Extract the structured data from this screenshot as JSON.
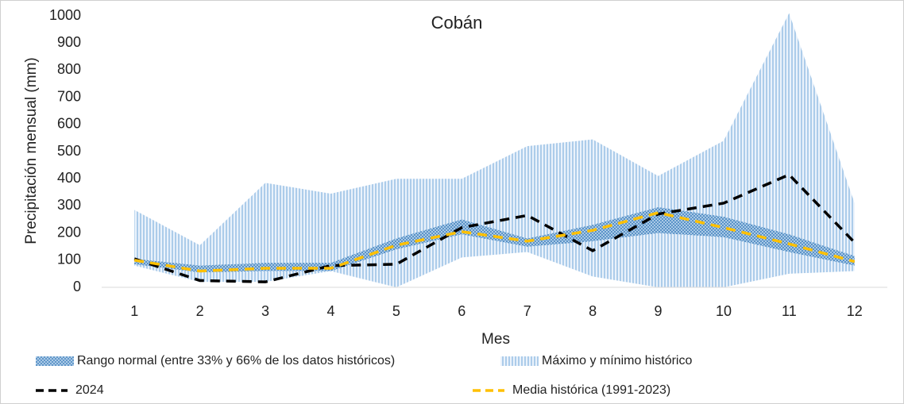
{
  "chart_data": {
    "type": "line",
    "title": "Cobán",
    "x_label": "Mes",
    "y_label": "Precipitación mensual (mm)",
    "x": [
      1,
      2,
      3,
      4,
      5,
      6,
      7,
      8,
      9,
      10,
      11,
      12
    ],
    "xlim": [
      0.5,
      12.5
    ],
    "ylim": [
      0,
      1000
    ],
    "yticks": [
      0,
      100,
      200,
      300,
      400,
      500,
      600,
      700,
      800,
      900,
      1000
    ],
    "grid": false,
    "legend": "bottom",
    "bands": [
      {
        "name": "Máximo y mínimo histórico",
        "color": "#9dc3e6",
        "high": [
          285,
          155,
          385,
          345,
          400,
          400,
          520,
          545,
          410,
          540,
          1010,
          310
        ],
        "low": [
          80,
          20,
          20,
          60,
          0,
          110,
          130,
          40,
          0,
          0,
          50,
          60
        ]
      },
      {
        "name": "Rango normal (entre 33% y 66% de los datos históricos)",
        "color": "#2e75b6",
        "high": [
          105,
          80,
          90,
          90,
          180,
          250,
          180,
          230,
          295,
          260,
          195,
          115
        ],
        "low": [
          85,
          55,
          60,
          60,
          140,
          195,
          150,
          170,
          200,
          185,
          130,
          80
        ]
      }
    ],
    "series": [
      {
        "name": "2024",
        "color": "#000000",
        "values": [
          105,
          25,
          20,
          80,
          85,
          220,
          265,
          135,
          270,
          310,
          415,
          165
        ]
      },
      {
        "name": "Media histórica (1991-2023)",
        "color": "#ffc000",
        "values": [
          100,
          60,
          70,
          70,
          155,
          205,
          170,
          210,
          275,
          220,
          160,
          95
        ]
      }
    ]
  }
}
